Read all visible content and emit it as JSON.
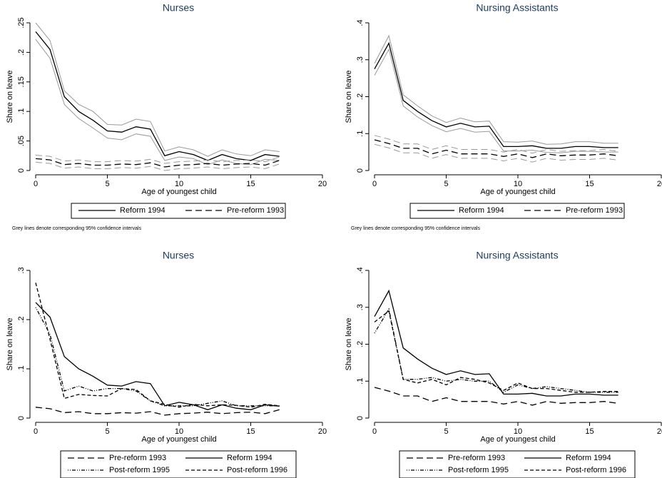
{
  "chart_data": [
    {
      "type": "line",
      "title": "Nurses",
      "xlabel": "Age of youngest child",
      "ylabel": "Share on leave",
      "note": "Grey lines denote corresponding 95% confidence intervals",
      "x": [
        0,
        1,
        2,
        3,
        4,
        5,
        6,
        7,
        8,
        9,
        10,
        11,
        12,
        13,
        14,
        15,
        16,
        17
      ],
      "series": [
        {
          "name": "Reform 1994",
          "color": "#000000",
          "dash": "solid",
          "values": [
            0.235,
            0.205,
            0.125,
            0.1,
            0.085,
            0.067,
            0.065,
            0.074,
            0.07,
            0.025,
            0.032,
            0.027,
            0.017,
            0.027,
            0.02,
            0.017,
            0.027,
            0.024
          ],
          "ci_color": "#999999",
          "ci_upper": [
            0.25,
            0.22,
            0.135,
            0.112,
            0.1,
            0.078,
            0.077,
            0.087,
            0.083,
            0.033,
            0.04,
            0.035,
            0.024,
            0.035,
            0.028,
            0.025,
            0.035,
            0.032
          ],
          "ci_lower": [
            0.222,
            0.19,
            0.112,
            0.088,
            0.072,
            0.055,
            0.052,
            0.062,
            0.058,
            0.017,
            0.023,
            0.02,
            0.01,
            0.018,
            0.012,
            0.01,
            0.019,
            0.017
          ]
        },
        {
          "name": "Pre-reform 1993",
          "color": "#000000",
          "dash": "long-dash",
          "values": [
            0.02,
            0.018,
            0.01,
            0.012,
            0.009,
            0.009,
            0.011,
            0.01,
            0.013,
            0.006,
            0.009,
            0.01,
            0.012,
            0.009,
            0.011,
            0.012,
            0.009,
            0.017
          ],
          "ci_color": "#999999",
          "ci_upper": [
            0.026,
            0.024,
            0.016,
            0.018,
            0.015,
            0.015,
            0.017,
            0.016,
            0.019,
            0.012,
            0.015,
            0.016,
            0.018,
            0.015,
            0.017,
            0.018,
            0.015,
            0.023
          ],
          "ci_lower": [
            0.014,
            0.012,
            0.004,
            0.006,
            0.003,
            0.003,
            0.005,
            0.004,
            0.007,
            0.0,
            0.003,
            0.004,
            0.006,
            0.003,
            0.005,
            0.006,
            0.003,
            0.011
          ]
        }
      ],
      "xlim": [
        0,
        20
      ],
      "xticks": [
        0,
        5,
        10,
        15,
        20
      ],
      "ylim": [
        0,
        0.25
      ],
      "yticks": [
        0,
        {
          "value": 0.05,
          "label": ".05"
        },
        {
          "value": 0.1,
          "label": ".1"
        },
        {
          "value": 0.15,
          "label": ".15"
        },
        {
          "value": 0.2,
          "label": ".2"
        },
        {
          "value": 0.25,
          "label": ".25"
        }
      ]
    },
    {
      "type": "line",
      "title": "Nursing Assistants",
      "xlabel": "Age of youngest child",
      "ylabel": "Share on leave",
      "note": "Grey lines denote corresponding 95% confidence intervals",
      "x": [
        0,
        1,
        2,
        3,
        4,
        5,
        6,
        7,
        8,
        9,
        10,
        11,
        12,
        13,
        14,
        15,
        16,
        17
      ],
      "series": [
        {
          "name": "Reform 1994",
          "color": "#000000",
          "dash": "solid",
          "values": [
            0.275,
            0.345,
            0.19,
            0.16,
            0.135,
            0.118,
            0.128,
            0.118,
            0.12,
            0.065,
            0.065,
            0.067,
            0.06,
            0.06,
            0.065,
            0.065,
            0.062,
            0.062
          ],
          "ci_color": "#999999",
          "ci_upper": [
            0.29,
            0.365,
            0.205,
            0.175,
            0.148,
            0.13,
            0.142,
            0.132,
            0.134,
            0.078,
            0.077,
            0.08,
            0.071,
            0.072,
            0.078,
            0.078,
            0.074,
            0.074
          ],
          "ci_lower": [
            0.258,
            0.328,
            0.175,
            0.145,
            0.122,
            0.105,
            0.114,
            0.104,
            0.106,
            0.053,
            0.053,
            0.055,
            0.049,
            0.048,
            0.052,
            0.052,
            0.05,
            0.05
          ]
        },
        {
          "name": "Pre-reform 1993",
          "color": "#000000",
          "dash": "long-dash",
          "values": [
            0.083,
            0.073,
            0.06,
            0.06,
            0.045,
            0.055,
            0.045,
            0.045,
            0.045,
            0.038,
            0.045,
            0.035,
            0.045,
            0.04,
            0.042,
            0.042,
            0.045,
            0.04
          ],
          "ci_color": "#999999",
          "ci_upper": [
            0.095,
            0.085,
            0.072,
            0.072,
            0.057,
            0.067,
            0.057,
            0.057,
            0.057,
            0.05,
            0.057,
            0.047,
            0.057,
            0.052,
            0.054,
            0.054,
            0.057,
            0.052
          ],
          "ci_lower": [
            0.071,
            0.061,
            0.048,
            0.048,
            0.033,
            0.043,
            0.033,
            0.033,
            0.033,
            0.026,
            0.033,
            0.023,
            0.033,
            0.028,
            0.03,
            0.03,
            0.033,
            0.028
          ]
        }
      ],
      "xlim": [
        0,
        20
      ],
      "xticks": [
        0,
        5,
        10,
        15,
        20
      ],
      "ylim": [
        0,
        0.4
      ],
      "yticks": [
        0,
        {
          "value": 0.1,
          "label": ".1"
        },
        {
          "value": 0.2,
          "label": ".2"
        },
        {
          "value": 0.3,
          "label": ".3"
        },
        {
          "value": 0.4,
          "label": ".4"
        }
      ]
    },
    {
      "type": "line",
      "title": "Nurses",
      "xlabel": "Age of youngest child",
      "ylabel": "Share on leave",
      "x": [
        0,
        1,
        2,
        3,
        4,
        5,
        6,
        7,
        8,
        9,
        10,
        11,
        12,
        13,
        14,
        15,
        16,
        17
      ],
      "series": [
        {
          "name": "Pre-reform 1993",
          "color": "#000000",
          "dash": "long-dash",
          "values": [
            0.022,
            0.019,
            0.011,
            0.013,
            0.009,
            0.009,
            0.011,
            0.01,
            0.013,
            0.006,
            0.009,
            0.01,
            0.012,
            0.009,
            0.011,
            0.012,
            0.009,
            0.017
          ]
        },
        {
          "name": "Reform 1994",
          "color": "#000000",
          "dash": "solid",
          "values": [
            0.235,
            0.205,
            0.125,
            0.1,
            0.085,
            0.067,
            0.065,
            0.074,
            0.07,
            0.025,
            0.032,
            0.027,
            0.017,
            0.027,
            0.02,
            0.017,
            0.027,
            0.024
          ]
        },
        {
          "name": "Post-reform 1995",
          "color": "#000000",
          "dash": "dash-dot",
          "values": [
            0.225,
            0.17,
            0.055,
            0.065,
            0.055,
            0.06,
            0.06,
            0.055,
            0.035,
            0.025,
            0.025,
            0.025,
            0.03,
            0.035,
            0.025,
            0.025,
            0.025,
            0.025
          ]
        },
        {
          "name": "Post-reform 1996",
          "color": "#000000",
          "dash": "dash",
          "values": [
            0.275,
            0.16,
            0.04,
            0.048,
            0.046,
            0.045,
            0.06,
            0.058,
            0.035,
            0.028,
            0.022,
            0.028,
            0.025,
            0.027,
            0.026,
            0.022,
            0.028,
            0.025
          ]
        }
      ],
      "xlim": [
        0,
        20
      ],
      "xticks": [
        0,
        5,
        10,
        15,
        20
      ],
      "ylim": [
        0,
        0.3
      ],
      "yticks": [
        0,
        {
          "value": 0.1,
          "label": ".1"
        },
        {
          "value": 0.2,
          "label": ".2"
        },
        {
          "value": 0.3,
          "label": ".3"
        }
      ]
    },
    {
      "type": "line",
      "title": "Nursing Assistants",
      "xlabel": "Age of youngest child",
      "ylabel": "Share on leave",
      "x": [
        0,
        1,
        2,
        3,
        4,
        5,
        6,
        7,
        8,
        9,
        10,
        11,
        12,
        13,
        14,
        15,
        16,
        17
      ],
      "series": [
        {
          "name": "Pre-reform 1993",
          "color": "#000000",
          "dash": "long-dash",
          "values": [
            0.083,
            0.073,
            0.06,
            0.06,
            0.045,
            0.055,
            0.045,
            0.045,
            0.045,
            0.038,
            0.045,
            0.035,
            0.045,
            0.04,
            0.042,
            0.042,
            0.045,
            0.04
          ]
        },
        {
          "name": "Reform 1994",
          "color": "#000000",
          "dash": "solid",
          "values": [
            0.275,
            0.345,
            0.19,
            0.16,
            0.135,
            0.118,
            0.128,
            0.118,
            0.12,
            0.065,
            0.065,
            0.067,
            0.06,
            0.06,
            0.065,
            0.065,
            0.062,
            0.062
          ]
        },
        {
          "name": "Post-reform 1995",
          "color": "#000000",
          "dash": "dash-dot",
          "values": [
            0.23,
            0.295,
            0.105,
            0.105,
            0.11,
            0.1,
            0.105,
            0.1,
            0.1,
            0.07,
            0.09,
            0.08,
            0.085,
            0.08,
            0.075,
            0.07,
            0.07,
            0.07
          ]
        },
        {
          "name": "Post-reform 1996",
          "color": "#000000",
          "dash": "dash",
          "values": [
            0.26,
            0.29,
            0.105,
            0.095,
            0.105,
            0.09,
            0.11,
            0.105,
            0.095,
            0.075,
            0.095,
            0.08,
            0.08,
            0.075,
            0.07,
            0.07,
            0.072,
            0.072
          ]
        }
      ],
      "xlim": [
        0,
        20
      ],
      "xticks": [
        0,
        5,
        10,
        15,
        20
      ],
      "ylim": [
        0,
        0.4
      ],
      "yticks": [
        0,
        {
          "value": 0.1,
          "label": ".1"
        },
        {
          "value": 0.2,
          "label": ".2"
        },
        {
          "value": 0.3,
          "label": ".3"
        },
        {
          "value": 0.4,
          "label": ".4"
        }
      ]
    }
  ]
}
